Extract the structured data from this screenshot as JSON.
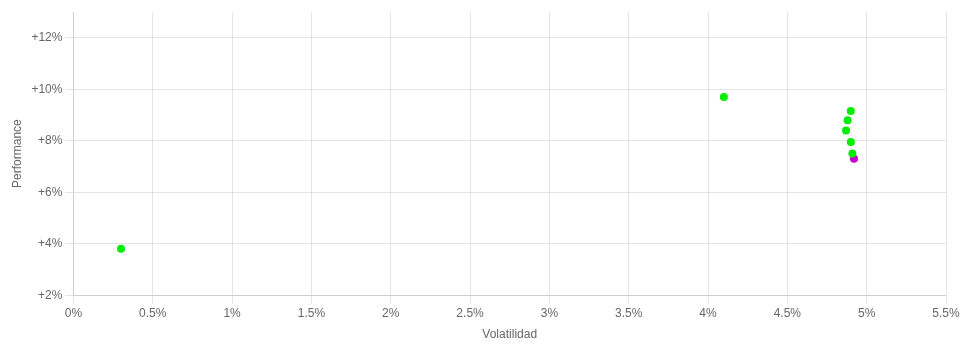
{
  "chart_data": {
    "type": "scatter",
    "xlabel": "Volatilidad",
    "ylabel": "Performance",
    "xlim": [
      0.0,
      0.055
    ],
    "ylim": [
      0.02,
      0.13
    ],
    "xticks": [
      {
        "value": 0.0,
        "label": "0%"
      },
      {
        "value": 0.005,
        "label": "0.5%"
      },
      {
        "value": 0.01,
        "label": "1%"
      },
      {
        "value": 0.015,
        "label": "1.5%"
      },
      {
        "value": 0.02,
        "label": "2%"
      },
      {
        "value": 0.025,
        "label": "2.5%"
      },
      {
        "value": 0.03,
        "label": "3%"
      },
      {
        "value": 0.035,
        "label": "3.5%"
      },
      {
        "value": 0.04,
        "label": "4%"
      },
      {
        "value": 0.045,
        "label": "4.5%"
      },
      {
        "value": 0.05,
        "label": "5%"
      },
      {
        "value": 0.055,
        "label": "5.5%"
      }
    ],
    "yticks": [
      {
        "value": 0.02,
        "label": "+2%"
      },
      {
        "value": 0.04,
        "label": "+4%"
      },
      {
        "value": 0.06,
        "label": "+6%"
      },
      {
        "value": 0.08,
        "label": "+8%"
      },
      {
        "value": 0.1,
        "label": "+10%"
      },
      {
        "value": 0.12,
        "label": "+12%"
      }
    ],
    "grid": true,
    "series": [
      {
        "color": "#00ee00",
        "x": [
          0.003,
          0.041,
          0.049,
          0.0488,
          0.0487,
          0.049,
          0.0491
        ],
        "values": [
          0.038,
          0.097,
          0.0915,
          0.088,
          0.084,
          0.0795,
          0.075
        ]
      },
      {
        "color": "#cc00cc",
        "x": [
          0.0492
        ],
        "values": [
          0.073
        ]
      }
    ]
  }
}
